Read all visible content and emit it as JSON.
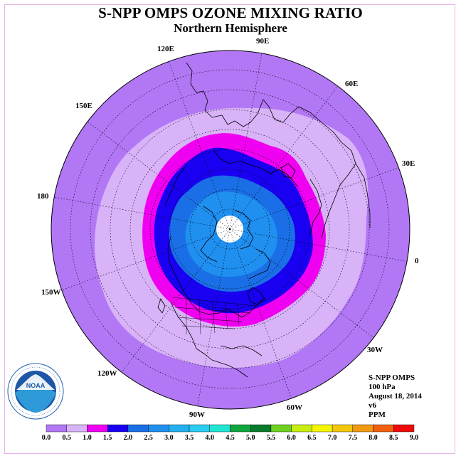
{
  "title": "S-NPP OMPS OZONE MIXING RATIO",
  "subtitle": "Northern Hemisphere",
  "longitude_labels": [
    "90E",
    "60E",
    "30E",
    "0",
    "30W",
    "60W",
    "90W",
    "120W",
    "150W",
    "180",
    "150E",
    "120E"
  ],
  "info": {
    "instrument": "S-NPP OMPS",
    "level": "100 hPa",
    "date": "August 18, 2014",
    "version": "v6",
    "units": "PPM"
  },
  "logo": {
    "text": "NOAA",
    "ring_text": "NATIONAL OCEANIC AND ATMOSPHERIC ADMINISTRATION · U.S. DEPARTMENT OF COMMERCE"
  },
  "colorbar": {
    "labels": [
      "0.0",
      "0.5",
      "1.0",
      "1.5",
      "2.0",
      "2.5",
      "3.0",
      "3.5",
      "4.0",
      "4.5",
      "5.0",
      "5.5",
      "6.0",
      "6.5",
      "7.0",
      "7.5",
      "8.0",
      "8.5",
      "9.0"
    ],
    "colors": [
      "#b277f5",
      "#d8b3f8",
      "#f000f0",
      "#1a00f0",
      "#1a6fe6",
      "#1f8ff0",
      "#24afef",
      "#28ccf0",
      "#1fe5d3",
      "#0fa63e",
      "#0a7a2c",
      "#6fd11f",
      "#c7ec10",
      "#f5f50a",
      "#f1c80b",
      "#f19a10",
      "#f0600f",
      "#ee0a0a",
      "#7f4f3a"
    ]
  }
}
